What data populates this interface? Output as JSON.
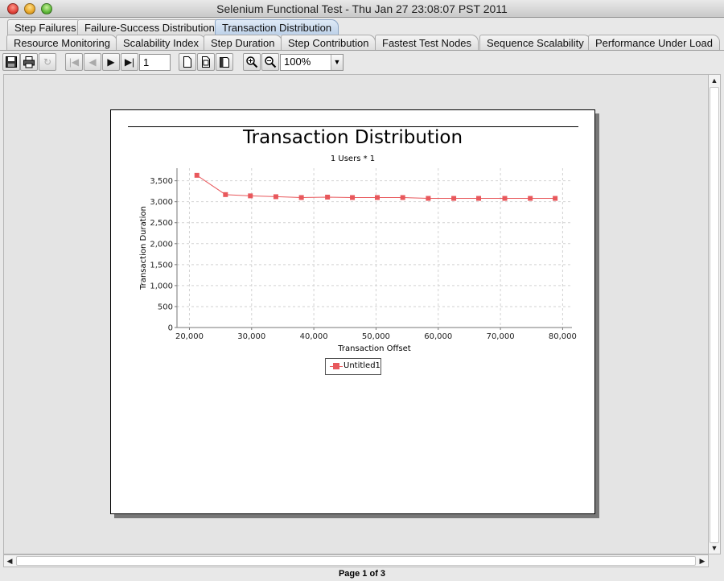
{
  "window": {
    "title": "Selenium Functional Test - Thu Jan 27 23:08:07 PST 2011"
  },
  "tabs_row1": [
    {
      "label": "Step Failures",
      "active": false
    },
    {
      "label": "Failure-Success Distribution",
      "active": false
    },
    {
      "label": "Transaction Distribution",
      "active": true
    }
  ],
  "tabs_row2": [
    {
      "label": "Resource Monitoring"
    },
    {
      "label": "Scalability Index"
    },
    {
      "label": "Step Duration"
    },
    {
      "label": "Step Contribution"
    },
    {
      "label": "Fastest Test Nodes"
    },
    {
      "label": "Sequence Scalability"
    },
    {
      "label": "Performance Under Load"
    }
  ],
  "toolbar": {
    "page_number": "1",
    "zoom": "100%",
    "icons": [
      "save-icon",
      "print-icon",
      "reload-icon",
      "first-page-icon",
      "previous-page-icon",
      "next-page-icon",
      "last-page-icon",
      "actual-size-icon",
      "fit-page-icon",
      "fit-width-icon",
      "zoom-in-icon",
      "zoom-out-icon"
    ]
  },
  "status": {
    "page_label": "Page 1 of 3"
  },
  "chart_data": {
    "type": "line",
    "title": "Transaction Distribution",
    "subtitle": "1 Users * 1",
    "xlabel": "Transaction Offset",
    "ylabel": "Transaction Duration",
    "xlim": [
      18000,
      81500
    ],
    "ylim": [
      0,
      3800
    ],
    "xticks": [
      20000,
      30000,
      40000,
      50000,
      60000,
      70000,
      80000
    ],
    "xtick_labels": [
      "20,000",
      "30,000",
      "40,000",
      "50,000",
      "60,000",
      "70,000",
      "80,000"
    ],
    "yticks": [
      0,
      500,
      1000,
      1500,
      2000,
      2500,
      3000,
      3500
    ],
    "ytick_labels": [
      "0",
      "500",
      "1,000",
      "1,500",
      "2,000",
      "2,500",
      "3,000",
      "3,500"
    ],
    "grid": true,
    "legend_position": "bottom",
    "color": "#e8585c",
    "series": [
      {
        "name": "Untitled1",
        "x": [
          21200,
          25800,
          29800,
          33900,
          38000,
          42200,
          46200,
          50200,
          54300,
          58400,
          62500,
          66500,
          70700,
          74800,
          78800
        ],
        "values": [
          3630,
          3170,
          3140,
          3120,
          3100,
          3110,
          3100,
          3100,
          3100,
          3080,
          3080,
          3080,
          3080,
          3080,
          3080
        ]
      }
    ]
  }
}
